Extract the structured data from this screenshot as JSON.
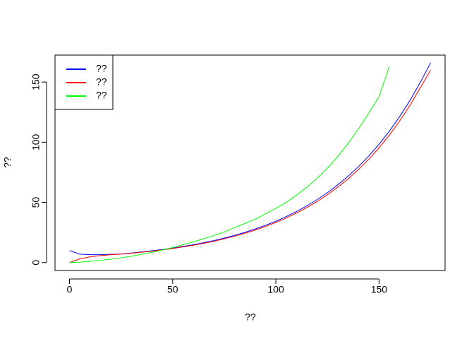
{
  "chart_data": {
    "type": "line",
    "xlabel": "??",
    "ylabel": "??",
    "x": [
      0,
      5,
      10,
      15,
      20,
      25,
      30,
      35,
      40,
      45,
      50,
      55,
      60,
      65,
      70,
      75,
      80,
      85,
      90,
      95,
      100,
      105,
      110,
      115,
      120,
      125,
      130,
      135,
      140,
      145,
      150,
      155,
      160,
      165,
      170,
      175
    ],
    "series": [
      {
        "name": "??",
        "color": "#0000ff",
        "values": [
          10,
          7,
          6.5,
          6.5,
          6.8,
          7.1,
          7.9,
          8.8,
          9.8,
          10.8,
          12.0,
          13.4,
          14.8,
          16.5,
          18.3,
          20.3,
          22.6,
          25.1,
          27.9,
          31.0,
          34.3,
          38.2,
          42.4,
          47.1,
          52.3,
          58.1,
          64.6,
          71.7,
          79.7,
          88.5,
          98.3,
          109.2,
          121.3,
          134.8,
          149.7,
          166
        ]
      },
      {
        "name": "??",
        "color": "#ff0000",
        "values": [
          0,
          3,
          4.8,
          5.8,
          6.5,
          7,
          7.7,
          8.6,
          9.5,
          10.5,
          11.7,
          13,
          14.4,
          16,
          17.7,
          19.7,
          21.9,
          24.3,
          27,
          30,
          33.3,
          37,
          41.1,
          45.7,
          50.7,
          56.4,
          62.7,
          69.5,
          77.3,
          85.8,
          95.3,
          105.9,
          117.7,
          130.7,
          145.2,
          160
        ]
      },
      {
        "name": "??",
        "color": "#00ff00",
        "values": [
          0,
          0.3,
          1,
          1.8,
          2.8,
          4,
          5.3,
          6.8,
          8.5,
          10.4,
          12.5,
          14.8,
          17.2,
          19.8,
          22.5,
          25.5,
          29,
          32.5,
          36,
          40.5,
          45,
          50,
          56,
          62.5,
          70,
          78.5,
          88,
          99,
          111,
          124,
          138,
          163,
          null,
          null,
          null,
          null
        ]
      }
    ],
    "xlim": [
      -7,
      182
    ],
    "ylim": [
      -6.6,
      172.4
    ],
    "xticks": [
      0,
      50,
      100,
      150
    ],
    "yticks": [
      0,
      50,
      100,
      150
    ],
    "grid": false,
    "legend": "topleft"
  }
}
